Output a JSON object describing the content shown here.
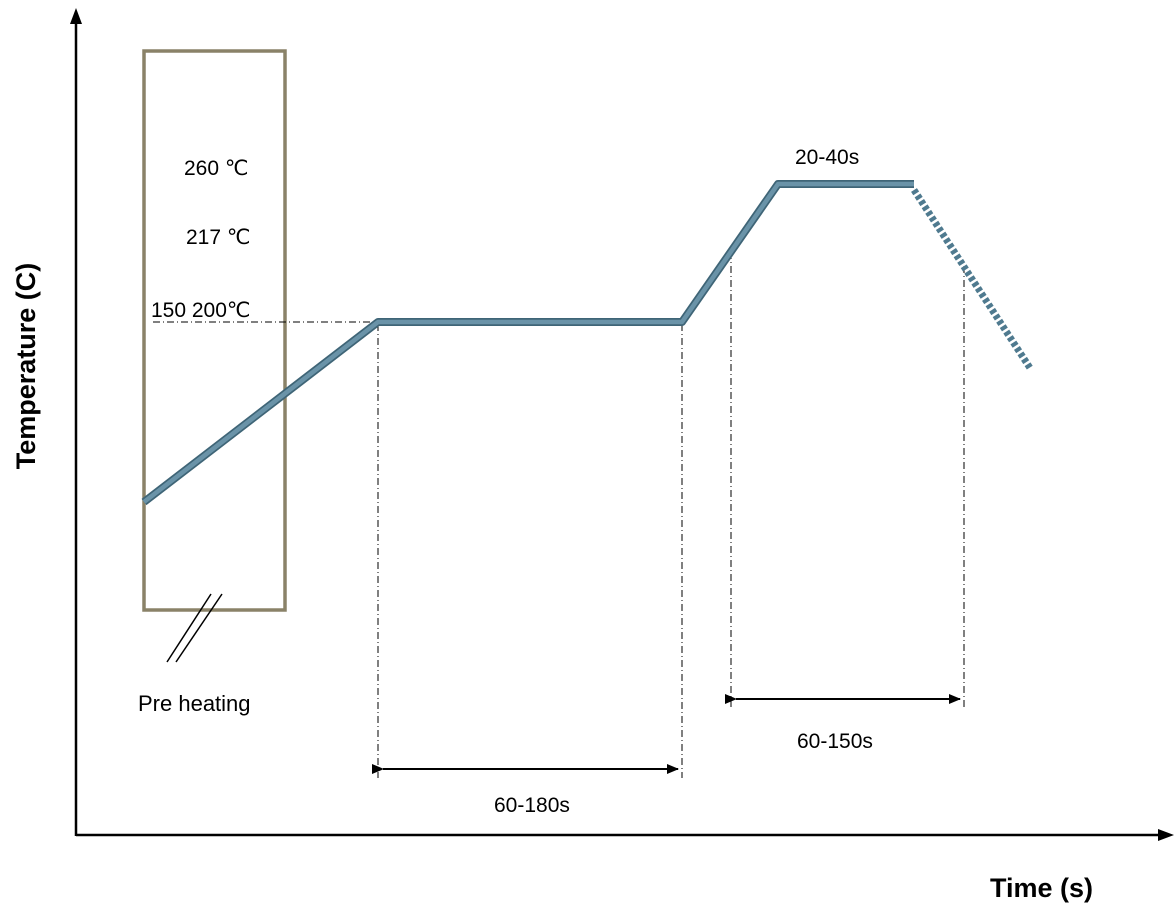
{
  "axes": {
    "y_title": "Temperature (C)",
    "x_title": "Time (s)"
  },
  "preheat_zone": {
    "label": "Pre heating",
    "temp_labels": [
      "260 ℃",
      "217 ℃",
      "150 200℃"
    ]
  },
  "durations": {
    "soak": "60-180s",
    "above_liquidus": "60-150s",
    "peak": "20-40s"
  },
  "colors": {
    "profile_line": "#6a93a8",
    "profile_outline": "#3f6577",
    "preheat_box": "#8a8268",
    "axes": "#000000"
  }
}
